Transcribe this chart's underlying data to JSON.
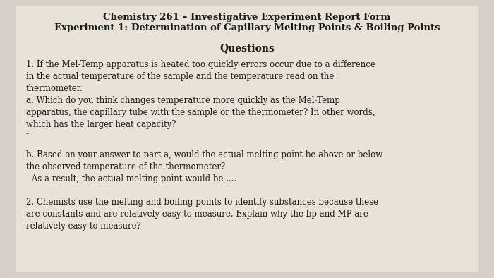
{
  "background_color": "#d6d0c8",
  "paper_color": "#e8e2d8",
  "title_line1": "Chemistry 261 – Investigative Experiment Report Form",
  "title_line2": "Experiment 1: Determination of Capillary Melting Points & Boiling Points",
  "section_header": "Questions",
  "q1_intro": "1. If the Mel-Temp apparatus is heated too quickly errors occur due to a difference\nin the actual temperature of the sample and the temperature read on the\nthermometer.",
  "q1a": "a. Which do you think changes temperature more quickly as the Mel-Temp\napparatus, the capillary tube with the sample or the thermometer? In other words,\nwhich has the larger heat capacity?",
  "dash": "-",
  "q1b": "b. Based on your answer to part a, would the actual melting point be above or below\nthe observed temperature of the thermometer?\n- As a result, the actual melting point would be ....",
  "q2": "2. Chemists use the melting and boiling points to identify substances because these\nare constants and are relatively easy to measure. Explain why the bp and MP are\nrelatively easy to measure?",
  "title_fontsize": 9.5,
  "body_fontsize": 8.5,
  "header_fontsize": 10
}
